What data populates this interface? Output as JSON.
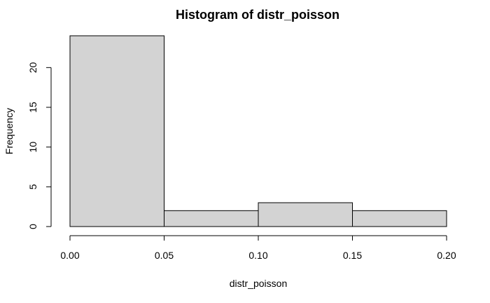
{
  "chart_data": {
    "type": "bar",
    "title": "Histogram of distr_poisson",
    "xlabel": "distr_poisson",
    "ylabel": "Frequency",
    "bins": [
      {
        "start": 0.0,
        "end": 0.05,
        "value": 24
      },
      {
        "start": 0.05,
        "end": 0.1,
        "value": 2
      },
      {
        "start": 0.1,
        "end": 0.15,
        "value": 3
      },
      {
        "start": 0.15,
        "end": 0.2,
        "value": 2
      }
    ],
    "xlim": [
      0,
      0.2
    ],
    "ylim": [
      0,
      24
    ],
    "x_ticks": [
      0.0,
      0.05,
      0.1,
      0.15,
      0.2
    ],
    "x_tick_labels": [
      "0.00",
      "0.05",
      "0.10",
      "0.15",
      "0.20"
    ],
    "y_ticks": [
      0,
      5,
      10,
      15,
      20
    ],
    "y_tick_labels": [
      "0",
      "5",
      "10",
      "15",
      "20"
    ],
    "bar_color": "#d3d3d3",
    "grid": false,
    "legend": "none"
  }
}
